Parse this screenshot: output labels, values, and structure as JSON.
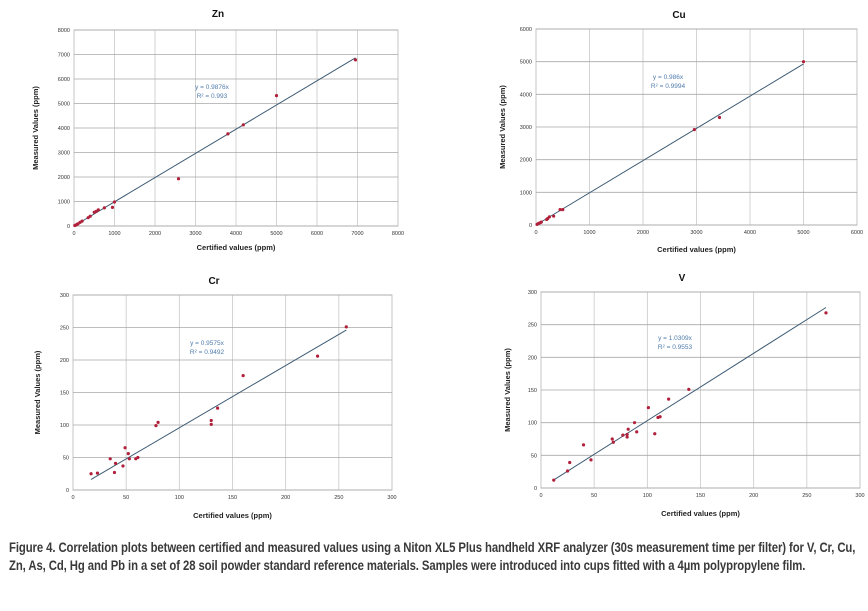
{
  "colors": {
    "grid": "#c8c8c8",
    "frame": "#bdbdbd",
    "point": "#b0203a",
    "trend": "#3d5a73",
    "equation": "#4f7bab"
  },
  "chart_data": [
    {
      "type": "scatter",
      "title": "Zn",
      "xlabel": "Certified values (ppm)",
      "ylabel": "Measured Values (ppm)",
      "xlim": [
        0,
        8000
      ],
      "ylim": [
        0,
        8000
      ],
      "xticks": [
        0,
        1000,
        2000,
        3000,
        4000,
        5000,
        6000,
        7000,
        8000
      ],
      "yticks": [
        0,
        1000,
        2000,
        3000,
        4000,
        5000,
        6000,
        7000,
        8000
      ],
      "grid": true,
      "trendline": {
        "slope": 0.9876,
        "x_range": [
          0,
          6950
        ],
        "equation": "y = 0.9876x",
        "r2": "R² = 0.993"
      },
      "points": [
        [
          20,
          20
        ],
        [
          50,
          40
        ],
        [
          80,
          70
        ],
        [
          100,
          90
        ],
        [
          150,
          150
        ],
        [
          200,
          200
        ],
        [
          350,
          340
        ],
        [
          400,
          400
        ],
        [
          500,
          560
        ],
        [
          550,
          600
        ],
        [
          600,
          660
        ],
        [
          750,
          740
        ],
        [
          950,
          760
        ],
        [
          1000,
          980
        ],
        [
          2580,
          1930
        ],
        [
          3800,
          3760
        ],
        [
          4180,
          4130
        ],
        [
          5000,
          5320
        ],
        [
          6950,
          6780
        ]
      ]
    },
    {
      "type": "scatter",
      "title": "Cu",
      "xlabel": "Certified values (ppm)",
      "ylabel": "Measured Values (ppm)",
      "xlim": [
        0,
        6000
      ],
      "ylim": [
        0,
        6000
      ],
      "xticks": [
        0,
        1000,
        2000,
        3000,
        4000,
        5000,
        6000
      ],
      "yticks": [
        0,
        1000,
        2000,
        3000,
        4000,
        5000,
        6000
      ],
      "grid": true,
      "trendline": {
        "slope": 0.986,
        "x_range": [
          0,
          5000
        ],
        "equation": "y = 0.986x",
        "r2": "R² = 0.9994"
      },
      "points": [
        [
          20,
          20
        ],
        [
          50,
          50
        ],
        [
          80,
          70
        ],
        [
          100,
          90
        ],
        [
          200,
          170
        ],
        [
          220,
          200
        ],
        [
          250,
          250
        ],
        [
          330,
          270
        ],
        [
          450,
          470
        ],
        [
          500,
          470
        ],
        [
          2960,
          2920
        ],
        [
          3430,
          3290
        ],
        [
          5000,
          5000
        ]
      ]
    },
    {
      "type": "scatter",
      "title": "Cr",
      "xlabel": "Certified values (ppm)",
      "ylabel": "Measured Values (ppm)",
      "xlim": [
        0,
        300
      ],
      "ylim": [
        0,
        300
      ],
      "xticks": [
        0,
        50,
        100,
        150,
        200,
        250,
        300
      ],
      "yticks": [
        0,
        50,
        100,
        150,
        200,
        250,
        300
      ],
      "grid": true,
      "trendline": {
        "slope": 0.9575,
        "x_range": [
          17,
          257
        ],
        "equation": "y = 0.9575x",
        "r2": "R² = 0.9492"
      },
      "points": [
        [
          17,
          25
        ],
        [
          23,
          26
        ],
        [
          35,
          48
        ],
        [
          39,
          27
        ],
        [
          40,
          41
        ],
        [
          47,
          37
        ],
        [
          49,
          65
        ],
        [
          52,
          56
        ],
        [
          53,
          48
        ],
        [
          59,
          48
        ],
        [
          61,
          50
        ],
        [
          78,
          99
        ],
        [
          80,
          104
        ],
        [
          130,
          107
        ],
        [
          130,
          101
        ],
        [
          136,
          126
        ],
        [
          160,
          176
        ],
        [
          230,
          206
        ],
        [
          257,
          251
        ]
      ]
    },
    {
      "type": "scatter",
      "title": "V",
      "xlabel": "Certified values (ppm)",
      "ylabel": "Measured Values (ppm)",
      "xlim": [
        0,
        300
      ],
      "ylim": [
        0,
        300
      ],
      "xticks": [
        0,
        50,
        100,
        150,
        200,
        250,
        300
      ],
      "yticks": [
        0,
        50,
        100,
        150,
        200,
        250,
        300
      ],
      "grid": true,
      "trendline": {
        "slope": 1.0309,
        "x_range": [
          12,
          268
        ],
        "equation": "y = 1.0309x",
        "r2": "R² = 0.9553"
      },
      "points": [
        [
          12,
          12
        ],
        [
          25,
          26
        ],
        [
          27,
          39
        ],
        [
          40,
          66
        ],
        [
          47,
          43
        ],
        [
          67,
          75
        ],
        [
          68,
          70
        ],
        [
          77,
          81
        ],
        [
          81,
          78
        ],
        [
          81,
          82
        ],
        [
          82,
          90
        ],
        [
          88,
          100
        ],
        [
          90,
          86
        ],
        [
          101,
          123
        ],
        [
          107,
          83
        ],
        [
          110,
          108
        ],
        [
          112,
          109
        ],
        [
          120,
          136
        ],
        [
          139,
          151
        ],
        [
          268,
          268
        ]
      ]
    }
  ],
  "caption": "Figure 4. Correlation plots between certified and measured values using a Niton XL5 Plus handheld XRF analyzer (30s measurement time per filter) for V, Cr, Cu, Zn, As, Cd, Hg and Pb in a set of 28 soil powder standard reference materials. Samples were introduced into cups fitted with a 4µm polypropylene film."
}
